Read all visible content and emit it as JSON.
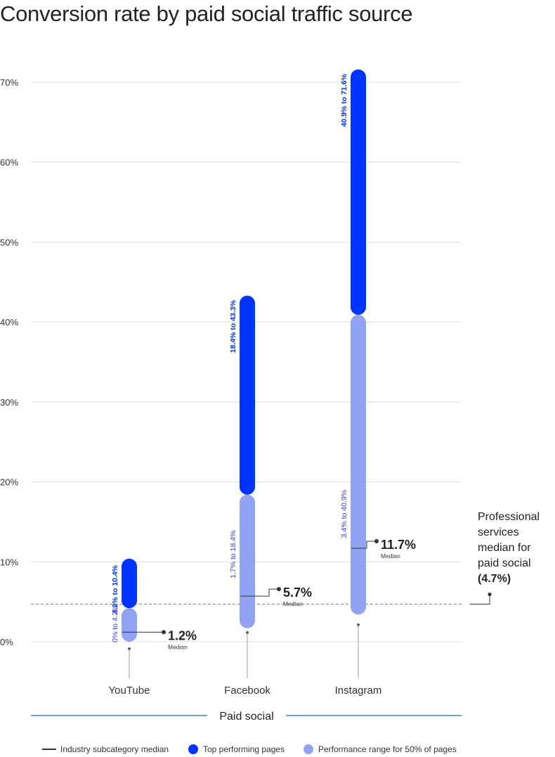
{
  "chart_data": {
    "type": "range-bar",
    "title": "Conversion rate by paid social traffic source",
    "y_ticks": [
      "0%",
      "10%",
      "20%",
      "30%",
      "40%",
      "50%",
      "60%",
      "70%"
    ],
    "ylim": [
      0,
      70
    ],
    "grid": true,
    "categories": [
      "YouTube",
      "Facebook",
      "Instagram"
    ],
    "group_label": "Paid social",
    "series": [
      {
        "name": "Performance range for 50% of pages",
        "color": "#93a3f3",
        "ranges": [
          [
            0,
            4.2
          ],
          [
            1.7,
            18.4
          ],
          [
            3.4,
            40.9
          ]
        ],
        "labels": [
          "0% to 4.2%",
          "1.7% to 18.4%",
          "3.4% to 40.9%"
        ]
      },
      {
        "name": "Top performing pages",
        "color": "#0033ff",
        "ranges": [
          [
            4.2,
            10.4
          ],
          [
            18.4,
            43.3
          ],
          [
            40.9,
            71.6
          ]
        ],
        "labels": [
          "4.2% to 10.4%",
          "18.4% to 43.3%",
          "40.9% to 71.6%"
        ]
      },
      {
        "name": "Industry subcategory median",
        "color": "#333333",
        "values": [
          1.2,
          5.7,
          11.7
        ],
        "labels": [
          "1.2%",
          "5.7%",
          "11.7%"
        ],
        "sublabel": "Median"
      }
    ],
    "reference_line": {
      "value": 4.7,
      "label_lines": [
        "Professional",
        "services",
        "median for",
        "paid social"
      ],
      "label_bold": "(4.7%)"
    },
    "legend": {
      "placement": "bottom",
      "items": [
        {
          "label": "Industry subcategory median",
          "marker": "line",
          "color": "#333333"
        },
        {
          "label": "Top performing pages",
          "marker": "dot",
          "color": "#0033ff"
        },
        {
          "label": "Performance range for 50% of pages",
          "marker": "dot",
          "color": "#93a3f3"
        }
      ]
    }
  }
}
